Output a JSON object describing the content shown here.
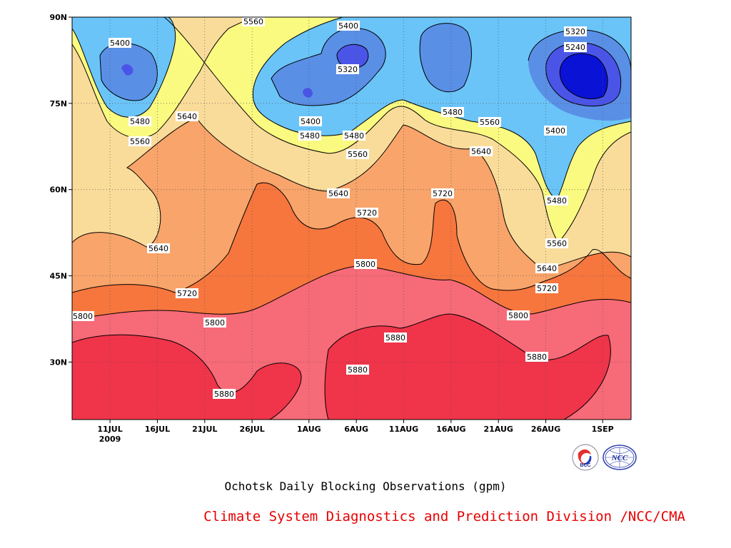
{
  "chart_data": {
    "type": "heatmap",
    "subtype": "filled-contour",
    "title": "Ochotsk Daily Blocking Observations (gpm)",
    "units": "gpm",
    "x": {
      "ticks": [
        "11JUL",
        "16JUL",
        "21JUL",
        "26JUL",
        "1AUG",
        "6AUG",
        "11AUG",
        "16AUG",
        "21AUG",
        "26AUG",
        "1SEP"
      ],
      "year_label": "2009",
      "range": [
        "2009-07-07",
        "2009-09-04"
      ]
    },
    "y": {
      "ticks": [
        "30N",
        "45N",
        "60N",
        "75N",
        "90N"
      ],
      "range": [
        20,
        90
      ]
    },
    "grid": true,
    "contour_levels": [
      5240,
      5320,
      5400,
      5480,
      5560,
      5640,
      5720,
      5800,
      5880
    ],
    "colors": {
      "below_5240": "#0a12d6",
      "5240_5320": "#4a55e8",
      "5320_5400": "#5a8fe6",
      "5400_5480": "#6ac4f8",
      "5480_5560": "#fafa80",
      "5560_5640": "#fadc9a",
      "5640_5720": "#f8a46a",
      "5720_5800": "#f7763e",
      "5800_5880": "#f76a78",
      "above_5880": "#f0344a"
    },
    "contour_labels": [
      "5560",
      "5400",
      "5320",
      "5240",
      "5400",
      "5320",
      "5400",
      "5480",
      "5480",
      "5560",
      "5480",
      "5560",
      "5640",
      "5400",
      "5480",
      "5560",
      "5640",
      "5560",
      "5640",
      "5640",
      "5720",
      "5720",
      "5480",
      "5560",
      "5640",
      "5800",
      "5640",
      "5720",
      "5720",
      "5800",
      "5800",
      "5800",
      "5880",
      "5880",
      "5880",
      "5880"
    ]
  },
  "captions": {
    "main": "Ochotsk Daily Blocking Observations (gpm)",
    "credit": "Climate System Diagnostics and Prediction Division /NCC/CMA"
  },
  "logos": {
    "left": "BCC",
    "right": "NCC"
  }
}
